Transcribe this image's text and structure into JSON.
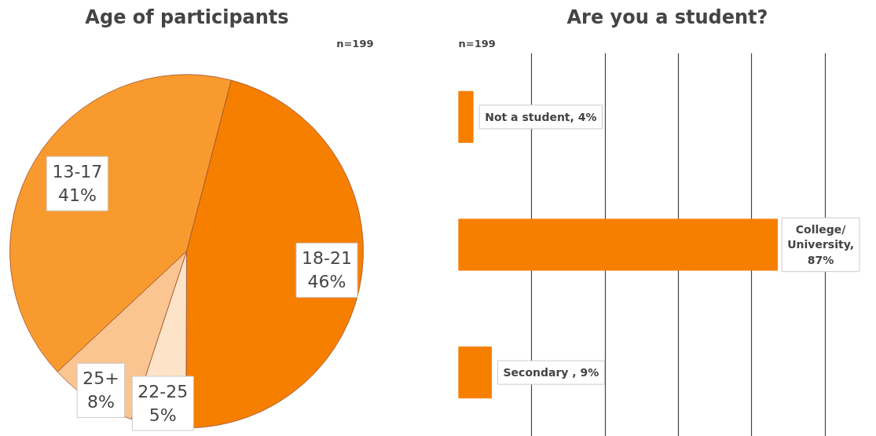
{
  "chart_data": [
    {
      "type": "pie",
      "title": "Age of participants",
      "subtitle": "n=199",
      "categories": [
        "18-21",
        "22-25",
        "25+",
        "13-17"
      ],
      "values": [
        46,
        5,
        8,
        41
      ],
      "value_labels": [
        "46%",
        "5%",
        "8%",
        "41%"
      ],
      "colors": [
        "#f77f00",
        "#fde4c8",
        "#fbc591",
        "#f89a2e"
      ]
    },
    {
      "type": "bar",
      "orientation": "horizontal",
      "title": "Are you a student?",
      "subtitle": "n=199",
      "categories": [
        null,
        null,
        null
      ],
      "values": [
        4,
        87,
        9
      ],
      "value_labels": [
        "Not a student, 4%",
        "College/\nUniversity,\n87%",
        "Secondary , 9%"
      ],
      "color": "#f77f00",
      "grid": "x",
      "tick_labels": false
    }
  ]
}
